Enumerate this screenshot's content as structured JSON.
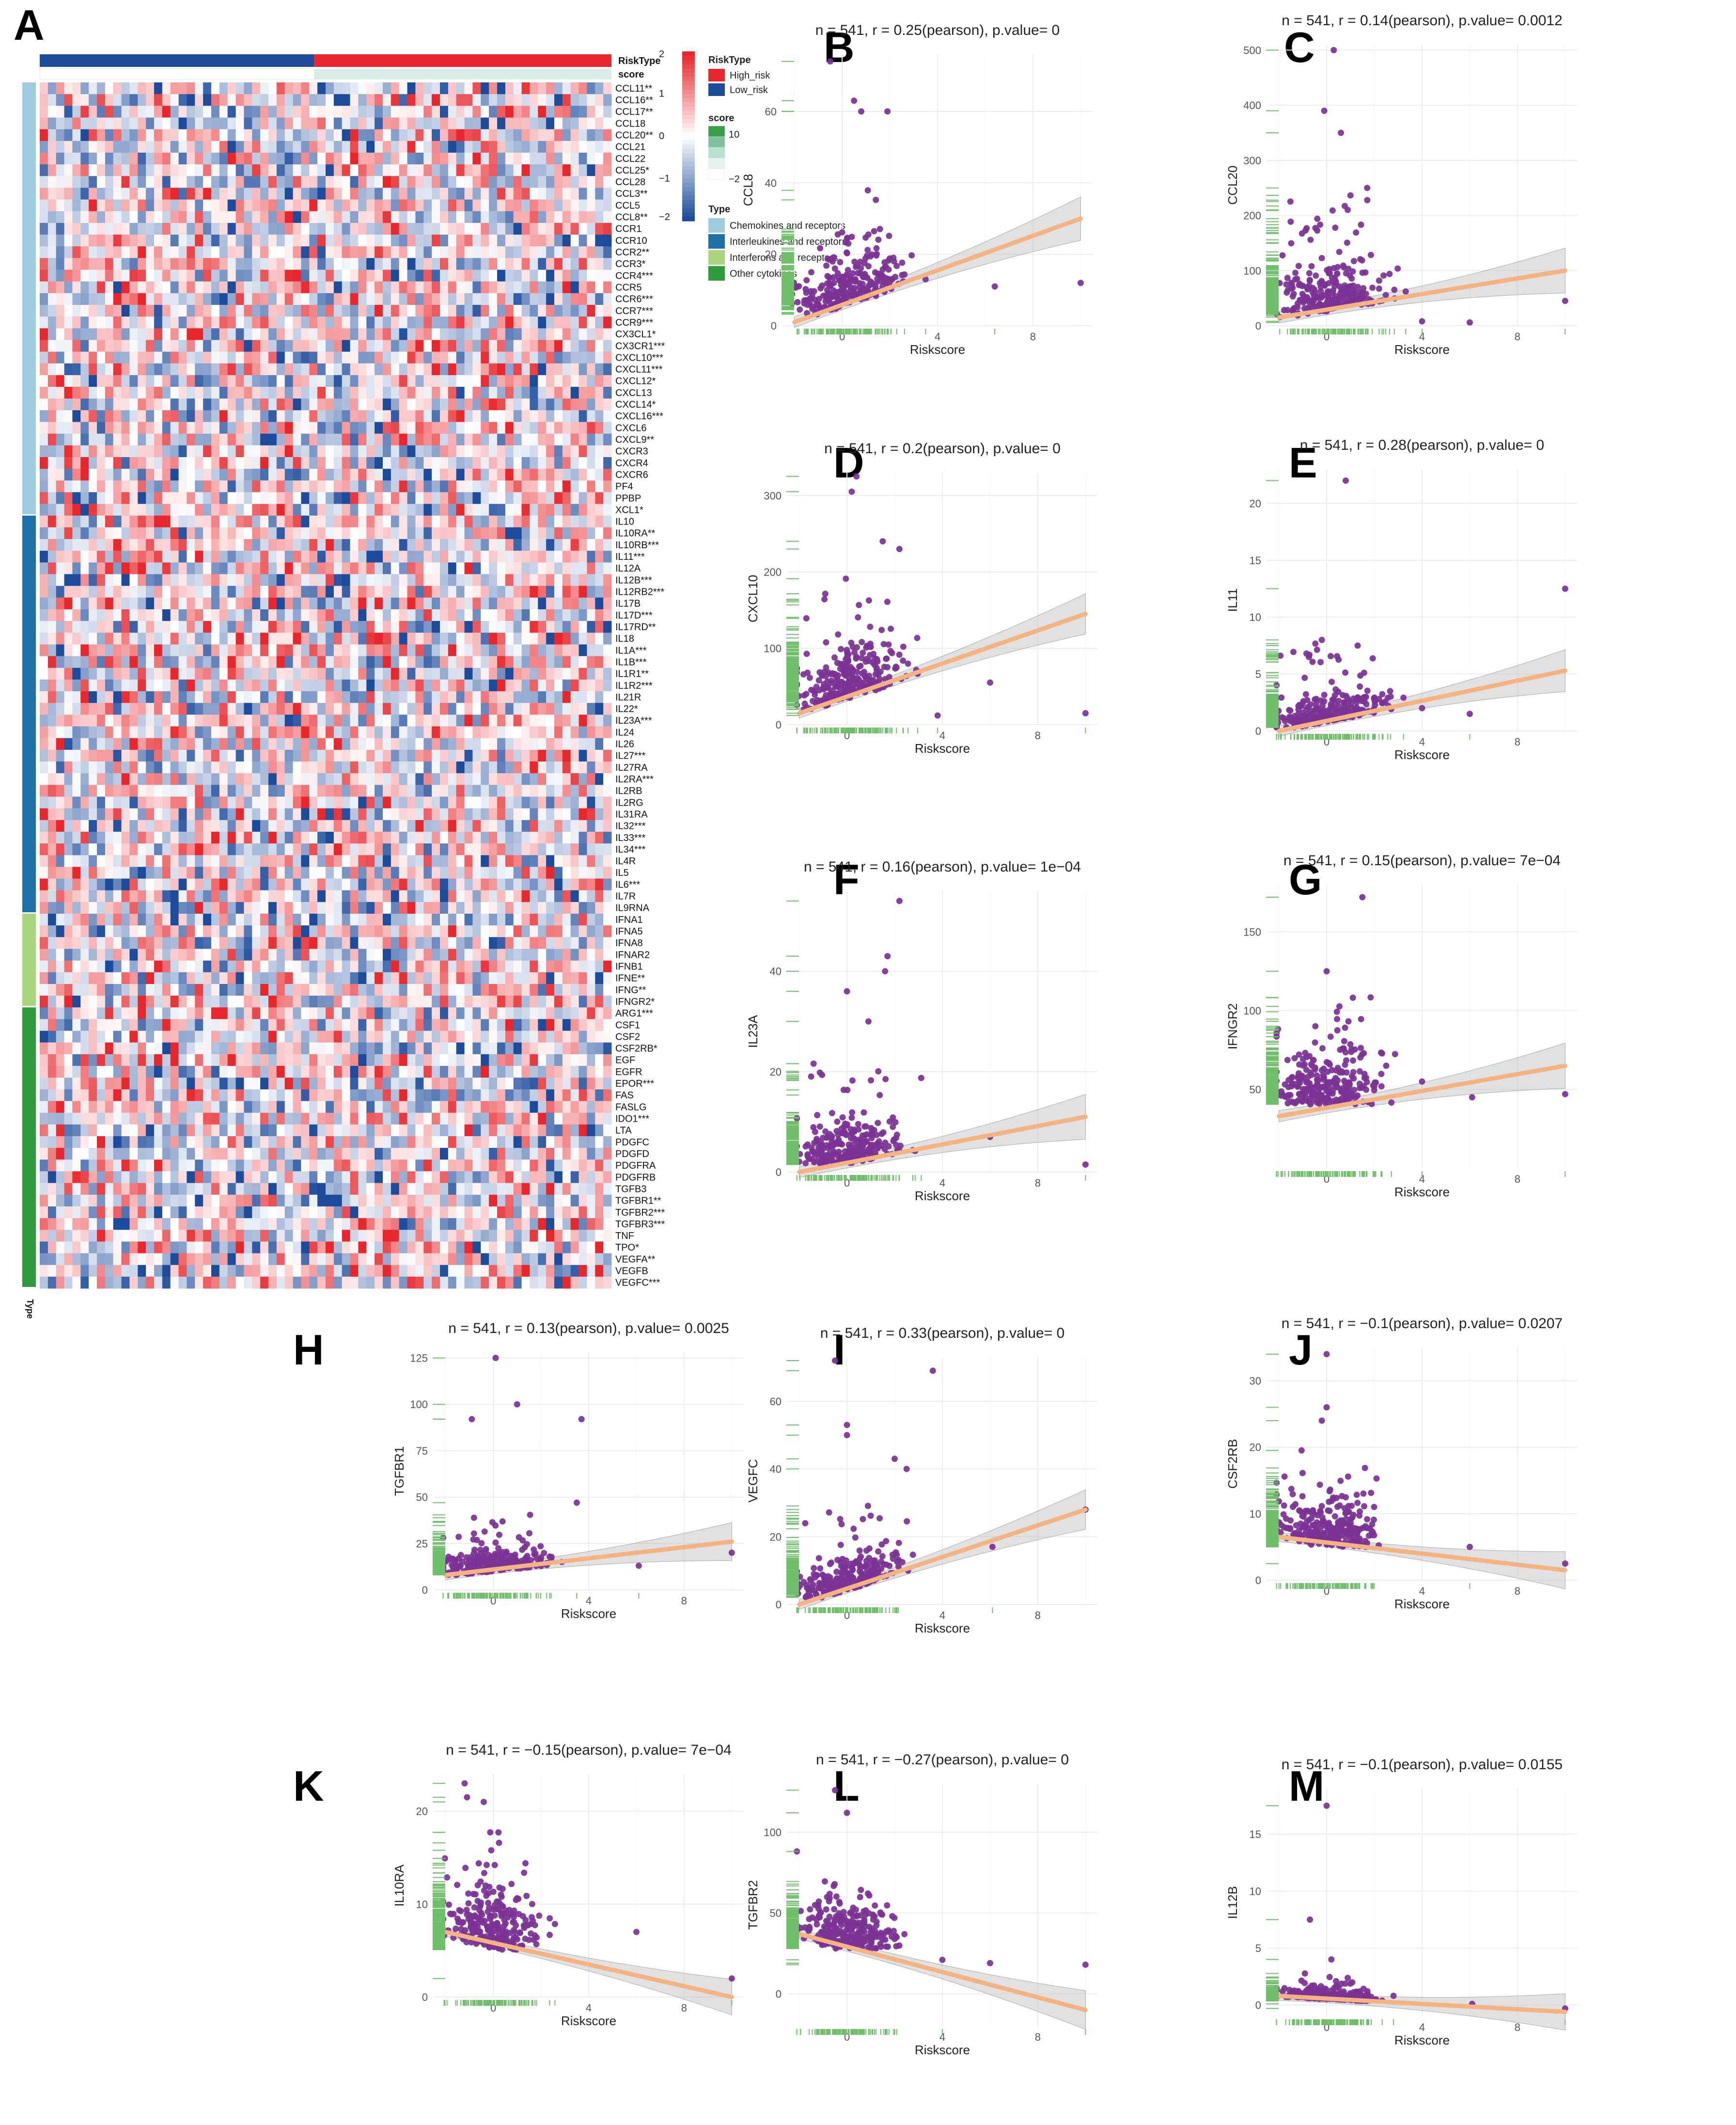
{
  "figure": {
    "panel_a_letter": "A",
    "heatmap": {
      "annotation_labels": {
        "risk": "RiskType",
        "score": "score",
        "type": "Type"
      },
      "legend": {
        "colorbar_title": "",
        "colorbar_ticks": [
          "2",
          "1",
          "0",
          "−1",
          "−2"
        ],
        "risktype_title": "RiskType",
        "risktype_items": [
          {
            "label": "High_risk",
            "color": "#e8262b"
          },
          {
            "label": "Low_risk",
            "color": "#1c4b9c"
          }
        ],
        "score_title": "score",
        "score_ticks": [
          "10",
          "−2"
        ],
        "type_title": "Type",
        "type_items": [
          {
            "label": "Chemokines and receptors",
            "color": "#9ecbe0"
          },
          {
            "label": "Interleukines and receptors",
            "color": "#1f6fa8"
          },
          {
            "label": "Interferons and receptors",
            "color": "#a8d47d"
          },
          {
            "label": "Other cytokines",
            "color": "#2f9a3b"
          }
        ]
      },
      "groups": [
        {
          "type": "Chemokines and receptors",
          "color": "#9ecbe0",
          "genes": [
            "CCL11**",
            "CCL16**",
            "CCL17**",
            "CCL18",
            "CCL20**",
            "CCL21",
            "CCL22",
            "CCL25*",
            "CCL28",
            "CCL3**",
            "CCL5",
            "CCL8**",
            "CCR1",
            "CCR10",
            "CCR2**",
            "CCR3*",
            "CCR4***",
            "CCR5",
            "CCR6***",
            "CCR7***",
            "CCR9***",
            "CX3CL1*",
            "CX3CR1***",
            "CXCL10***",
            "CXCL11***",
            "CXCL12*",
            "CXCL13",
            "CXCL14*",
            "CXCL16***",
            "CXCL6",
            "CXCL9**",
            "CXCR3",
            "CXCR4",
            "CXCR6",
            "PF4",
            "PPBP",
            "XCL1*"
          ]
        },
        {
          "type": "Interleukines and receptors",
          "color": "#1f6fa8",
          "genes": [
            "IL10",
            "IL10RA**",
            "IL10RB***",
            "IL11***",
            "IL12A",
            "IL12B***",
            "IL12RB2***",
            "IL17B",
            "IL17D***",
            "IL17RD**",
            "IL18",
            "IL1A***",
            "IL1B***",
            "IL1R1**",
            "IL1R2***",
            "IL21R",
            "IL22*",
            "IL23A***",
            "IL24",
            "IL26",
            "IL27***",
            "IL27RA",
            "IL2RA***",
            "IL2RB",
            "IL2RG",
            "IL31RA",
            "IL32***",
            "IL33***",
            "IL34***",
            "IL4R",
            "IL5",
            "IL6***",
            "IL7R",
            "IL9RNA"
          ]
        },
        {
          "type": "Interferons and receptors",
          "color": "#a8d47d",
          "genes": [
            "IFNA1",
            "IFNA5",
            "IFNA8",
            "IFNAR2",
            "IFNB1",
            "IFNE**",
            "IFNG**",
            "IFNGR2*"
          ]
        },
        {
          "type": "Other cytokines",
          "color": "#2f9a3b",
          "genes": [
            "ARG1***",
            "CSF1",
            "CSF2",
            "CSF2RB*",
            "EGF",
            "EGFR",
            "EPOR***",
            "FAS",
            "FASLG",
            "IDO1***",
            "LTA",
            "PDGFC",
            "PDGFD",
            "PDGFRA",
            "PDGFRB",
            "TGFB3",
            "TGFBR1**",
            "TGFBR2***",
            "TGFBR3***",
            "TNF",
            "TPO*",
            "VEGFA**",
            "VEGFB",
            "VEGFC***"
          ]
        }
      ],
      "type_axis_label": "Type"
    }
  },
  "chart_data": [
    {
      "type": "scatter",
      "panel": "B",
      "title": "n = 541, r = 0.25(pearson), p.value= 0",
      "xlabel": "Riskscore",
      "ylabel": "CCL8",
      "xlim": [
        -2.5,
        10.5
      ],
      "ylim": [
        0,
        76
      ],
      "xticks": [
        0,
        4,
        8
      ],
      "yticks": [
        0,
        20,
        40,
        60
      ],
      "fit": {
        "x0": -2,
        "y0": 1,
        "x1": 10,
        "y1": 30
      },
      "seed": 11,
      "cloud": {
        "xmean": 0.2,
        "xsd": 1.1,
        "base": 3,
        "spread": 6,
        "tail": 10
      },
      "outliers": [
        [
          -0.5,
          74
        ],
        [
          0.8,
          60
        ],
        [
          1.9,
          60
        ],
        [
          0.5,
          63
        ],
        [
          6.4,
          11
        ],
        [
          10,
          12
        ],
        [
          3.5,
          13
        ]
      ]
    },
    {
      "type": "scatter",
      "panel": "C",
      "title": "n = 541, r = 0.14(pearson), p.value= 0.0012",
      "xlabel": "Riskscore",
      "ylabel": "CCL20",
      "xlim": [
        -2.5,
        10.5
      ],
      "ylim": [
        0,
        510
      ],
      "xticks": [
        0,
        4,
        8
      ],
      "yticks": [
        0,
        100,
        200,
        300,
        400,
        500
      ],
      "fit": {
        "x0": -2,
        "y0": 15,
        "x1": 10,
        "y1": 100
      },
      "seed": 23,
      "cloud": {
        "xmean": 0.1,
        "xsd": 1.1,
        "base": 15,
        "spread": 35,
        "tail": 80
      },
      "outliers": [
        [
          0.3,
          500
        ],
        [
          -0.1,
          390
        ],
        [
          0.6,
          350
        ],
        [
          1.7,
          250
        ],
        [
          10,
          45
        ],
        [
          6,
          6
        ],
        [
          4,
          8
        ]
      ]
    },
    {
      "type": "scatter",
      "panel": "D",
      "title": "n = 541, r = 0.2(pearson), p.value= 0",
      "xlabel": "Riskscore",
      "ylabel": "CXCL10",
      "xlim": [
        -2.5,
        10.5
      ],
      "ylim": [
        0,
        330
      ],
      "xticks": [
        0,
        4,
        8
      ],
      "yticks": [
        0,
        100,
        200,
        300
      ],
      "fit": {
        "x0": -2,
        "y0": 15,
        "x1": 10,
        "y1": 145
      },
      "seed": 37,
      "cloud": {
        "xmean": 0.2,
        "xsd": 1.1,
        "base": 15,
        "spread": 30,
        "tail": 60
      },
      "outliers": [
        [
          0.4,
          325
        ],
        [
          0.2,
          305
        ],
        [
          1.5,
          240
        ],
        [
          2.2,
          230
        ],
        [
          10,
          15
        ],
        [
          6,
          55
        ],
        [
          3.8,
          12
        ]
      ]
    },
    {
      "type": "scatter",
      "panel": "E",
      "title": "n = 541, r = 0.28(pearson), p.value= 0",
      "xlabel": "Riskscore",
      "ylabel": "IL11",
      "xlim": [
        -2.5,
        10.5
      ],
      "ylim": [
        0,
        23
      ],
      "xticks": [
        0,
        4,
        8
      ],
      "yticks": [
        0,
        5,
        10,
        15,
        20
      ],
      "fit": {
        "x0": -2,
        "y0": 0,
        "x1": 10,
        "y1": 5.3
      },
      "seed": 41,
      "cloud": {
        "xmean": 0.1,
        "xsd": 1.1,
        "base": 0.3,
        "spread": 1.0,
        "tail": 3
      },
      "outliers": [
        [
          0.8,
          22
        ],
        [
          10,
          12.5
        ],
        [
          -0.2,
          8
        ],
        [
          1.3,
          7.5
        ],
        [
          6,
          1.5
        ],
        [
          4,
          2
        ]
      ]
    },
    {
      "type": "scatter",
      "panel": "F",
      "title": "n = 541, r = 0.16(pearson), p.value= 1e−04",
      "xlabel": "Riskscore",
      "ylabel": "IL23A",
      "xlim": [
        -2.5,
        10.5
      ],
      "ylim": [
        0,
        56
      ],
      "xticks": [
        0,
        4,
        8
      ],
      "yticks": [
        0,
        20,
        40
      ],
      "fit": {
        "x0": -2,
        "y0": 0,
        "x1": 10,
        "y1": 11
      },
      "seed": 53,
      "cloud": {
        "xmean": 0.1,
        "xsd": 1.1,
        "base": 1.5,
        "spread": 3.5,
        "tail": 8
      },
      "outliers": [
        [
          2.2,
          54
        ],
        [
          1.7,
          43
        ],
        [
          1.6,
          40
        ],
        [
          0,
          36
        ],
        [
          10,
          1.5
        ],
        [
          6,
          7
        ],
        [
          0.9,
          30
        ]
      ]
    },
    {
      "type": "scatter",
      "panel": "G",
      "title": "n = 541, r = 0.15(pearson), p.value= 7e−04",
      "xlabel": "Riskscore",
      "ylabel": "IFNGR2",
      "xlim": [
        -2.5,
        10.5
      ],
      "ylim": [
        0,
        180
      ],
      "xticks": [
        0,
        4,
        8
      ],
      "yticks": [
        50,
        100,
        150
      ],
      "fit": {
        "x0": -2,
        "y0": 33,
        "x1": 10,
        "y1": 65
      },
      "seed": 67,
      "cloud": {
        "xmean": 0.1,
        "xsd": 1.1,
        "base": 40,
        "spread": 15,
        "tail": 25
      },
      "outliers": [
        [
          1.5,
          172
        ],
        [
          0,
          125
        ],
        [
          10,
          47
        ],
        [
          6.1,
          45
        ],
        [
          4,
          55
        ]
      ]
    },
    {
      "type": "scatter",
      "panel": "H",
      "title": "n = 541, r = 0.13(pearson), p.value= 0.0025",
      "xlabel": "Riskscore",
      "ylabel": "TGFBR1",
      "xlim": [
        -2.5,
        10.5
      ],
      "ylim": [
        0,
        128
      ],
      "xticks": [
        0,
        4,
        8
      ],
      "yticks": [
        0,
        25,
        50,
        75,
        100,
        125
      ],
      "fit": {
        "x0": -2,
        "y0": 8,
        "x1": 10,
        "y1": 26
      },
      "seed": 79,
      "cloud": {
        "xmean": 0.1,
        "xsd": 1.1,
        "base": 8,
        "spread": 5,
        "tail": 12
      },
      "outliers": [
        [
          0.1,
          125
        ],
        [
          1,
          100
        ],
        [
          -0.9,
          92
        ],
        [
          3.7,
          92
        ],
        [
          3.5,
          47
        ],
        [
          10,
          20
        ],
        [
          6.1,
          13
        ]
      ]
    },
    {
      "type": "scatter",
      "panel": "I",
      "title": "n = 541, r = 0.33(pearson), p.value= 0",
      "xlabel": "Riskscore",
      "ylabel": "VEGFC",
      "xlim": [
        -2.5,
        10.5
      ],
      "ylim": [
        0,
        73
      ],
      "xticks": [
        0,
        4,
        8
      ],
      "yticks": [
        0,
        20,
        40,
        60
      ],
      "fit": {
        "x0": -2,
        "y0": 0,
        "x1": 10,
        "y1": 28
      },
      "seed": 83,
      "cloud": {
        "xmean": 0.1,
        "xsd": 1.1,
        "base": 2,
        "spread": 4,
        "tail": 10
      },
      "outliers": [
        [
          -0.5,
          72
        ],
        [
          3.6,
          69
        ],
        [
          0,
          53
        ],
        [
          0,
          50
        ],
        [
          2,
          43
        ],
        [
          10,
          28
        ],
        [
          6.1,
          17
        ],
        [
          2.5,
          40
        ]
      ]
    },
    {
      "type": "scatter",
      "panel": "J",
      "title": "n = 541, r = −0.1(pearson), p.value= 0.0207",
      "xlabel": "Riskscore",
      "ylabel": "CSF2RB",
      "xlim": [
        -2.5,
        10.5
      ],
      "ylim": [
        0,
        35
      ],
      "xticks": [
        0,
        4,
        8
      ],
      "yticks": [
        0,
        10,
        20,
        30
      ],
      "fit": {
        "x0": -2,
        "y0": 6.5,
        "x1": 10,
        "y1": 1.5
      },
      "seed": 97,
      "cloud": {
        "xmean": 0,
        "xsd": 1.0,
        "base": 5,
        "spread": 3,
        "tail": 4
      },
      "outliers": [
        [
          0,
          34
        ],
        [
          0,
          26
        ],
        [
          -0.2,
          24
        ],
        [
          10,
          2.5
        ],
        [
          6,
          5
        ]
      ]
    },
    {
      "type": "scatter",
      "panel": "K",
      "title": "n = 541, r = −0.15(pearson), p.value= 7e−04",
      "xlabel": "Riskscore",
      "ylabel": "IL10RA",
      "xlim": [
        -2.5,
        10.5
      ],
      "ylim": [
        0,
        24
      ],
      "xticks": [
        0,
        4,
        8
      ],
      "yticks": [
        0,
        10,
        20
      ],
      "fit": {
        "x0": -2,
        "y0": 7,
        "x1": 10,
        "y1": 0
      },
      "seed": 101,
      "cloud": {
        "xmean": 0,
        "xsd": 1.0,
        "base": 5,
        "spread": 3,
        "tail": 4
      },
      "outliers": [
        [
          -1.2,
          23
        ],
        [
          -1.1,
          21.5
        ],
        [
          -0.4,
          21
        ],
        [
          6,
          7
        ],
        [
          10,
          2
        ]
      ]
    },
    {
      "type": "scatter",
      "panel": "L",
      "title": "n = 541, r = −0.27(pearson), p.value= 0",
      "xlabel": "Riskscore",
      "ylabel": "TGFBR2",
      "xlim": [
        -2.5,
        10.5
      ],
      "ylim": [
        -20,
        130
      ],
      "xticks": [
        0,
        4,
        8
      ],
      "yticks": [
        0,
        50,
        100
      ],
      "fit": {
        "x0": -2,
        "y0": 37,
        "x1": 10,
        "y1": -10
      },
      "seed": 113,
      "cloud": {
        "xmean": 0,
        "xsd": 1.0,
        "base": 28,
        "spread": 12,
        "tail": 15
      },
      "outliers": [
        [
          -0.5,
          126
        ],
        [
          0,
          112
        ],
        [
          10,
          18
        ],
        [
          6,
          19
        ],
        [
          4,
          21
        ]
      ]
    },
    {
      "type": "scatter",
      "panel": "M",
      "title": "n = 541, r = −0.1(pearson), p.value= 0.0155",
      "xlabel": "Riskscore",
      "ylabel": "IL12B",
      "xlim": [
        -2.5,
        10.5
      ],
      "ylim": [
        -1,
        19
      ],
      "xticks": [
        0,
        4,
        8
      ],
      "yticks": [
        0,
        5,
        10,
        15
      ],
      "fit": {
        "x0": -2,
        "y0": 0.8,
        "x1": 10,
        "y1": -0.6
      },
      "seed": 127,
      "cloud": {
        "xmean": 0,
        "xsd": 1.0,
        "base": 0.2,
        "spread": 0.4,
        "tail": 0.8
      },
      "outliers": [
        [
          0,
          17.5
        ],
        [
          -0.7,
          7.5
        ],
        [
          0.2,
          4
        ],
        [
          6.1,
          0.1
        ],
        [
          10,
          -0.3
        ]
      ]
    }
  ]
}
